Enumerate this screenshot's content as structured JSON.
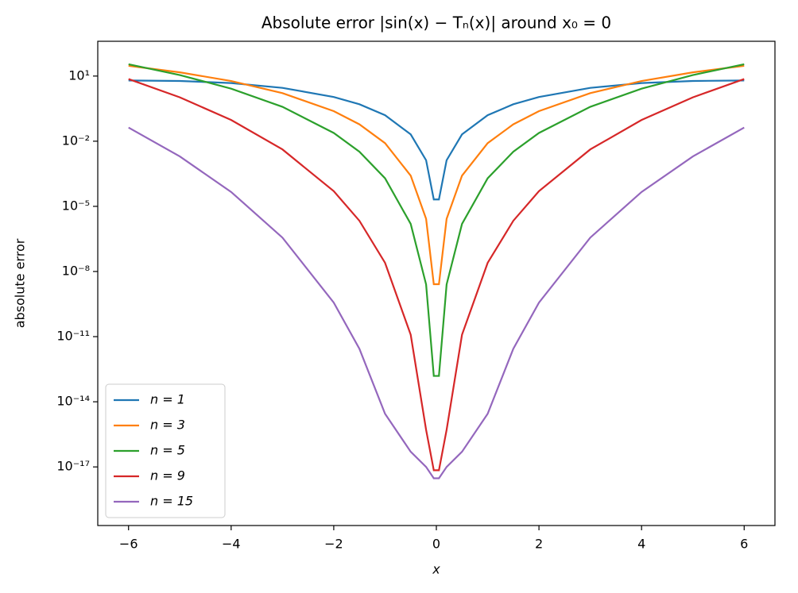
{
  "chart_data": {
    "type": "line",
    "title": "Absolute error |sin(x) − Tₙ(x)| around x₀ = 0",
    "x_label": "x",
    "y_label": "absolute error",
    "log_y": true,
    "grid": false,
    "legend": "lower left",
    "x": [
      -6,
      -5,
      -4,
      -3,
      -2,
      -1.5,
      -1,
      -0.5,
      -0.2,
      -0.05,
      0.05,
      0.2,
      0.5,
      1,
      1.5,
      2,
      3,
      4,
      5,
      6
    ],
    "series": [
      {
        "name": "n = 1",
        "color": "#1f77b4",
        "values": [
          6.279,
          5.959,
          4.757,
          2.859,
          1.0907,
          0.5025,
          0.1585,
          0.0206,
          0.001331,
          2.08e-05,
          2.08e-05,
          0.001331,
          0.0206,
          0.1585,
          0.5025,
          1.0907,
          2.859,
          4.757,
          5.959,
          6.279
        ]
      },
      {
        "name": "n = 3",
        "color": "#ff7f0e",
        "values": [
          29.72,
          14.87,
          5.91,
          1.641,
          0.2426,
          0.06,
          0.00814,
          0.000259,
          2.67e-06,
          2.6e-09,
          2.6e-09,
          2.67e-06,
          0.000259,
          0.00814,
          0.06,
          0.2426,
          1.641,
          5.91,
          14.87,
          29.72
        ]
      },
      {
        "name": "n = 5",
        "color": "#2ca02c",
        "values": [
          35.08,
          11.17,
          2.62,
          0.384,
          0.024,
          0.00328,
          0.000196,
          1.55e-06,
          2.54e-09,
          1.55e-13,
          1.55e-13,
          2.54e-09,
          1.55e-06,
          0.000196,
          0.00328,
          0.024,
          0.384,
          2.62,
          11.17,
          35.08
        ]
      },
      {
        "name": "n = 9",
        "color": "#d62728",
        "values": [
          7.31,
          1.048,
          0.0951,
          0.00419,
          5e-05,
          2.17e-06,
          2.5e-08,
          1.22e-11,
          5.1e-16,
          7e-18,
          7e-18,
          5.1e-16,
          1.22e-11,
          2.5e-08,
          2.17e-06,
          5e-05,
          0.00419,
          0.0951,
          1.048,
          7.31
        ]
      },
      {
        "name": "n = 15",
        "color": "#9467bd",
        "values": [
          0.0426,
          0.00199,
          4.6e-05,
          3.63e-07,
          3.68e-10,
          2.77e-12,
          2.8e-15,
          5e-17,
          1e-17,
          3e-18,
          3e-18,
          1e-17,
          5e-17,
          2.8e-15,
          2.77e-12,
          3.68e-10,
          3.63e-07,
          4.6e-05,
          0.00199,
          0.0426
        ]
      }
    ],
    "xlim": [
      -6.6,
      6.6
    ],
    "xticks": [
      {
        "value": -6,
        "label": "−6"
      },
      {
        "value": -4,
        "label": "−4"
      },
      {
        "value": -2,
        "label": "−2"
      },
      0,
      2,
      4,
      6
    ],
    "ylim": [
      2e-20,
      400
    ],
    "yticks": [
      {
        "value": 10,
        "label": "10¹"
      },
      {
        "value": 0.01,
        "label": "10⁻²"
      },
      {
        "value": 1e-05,
        "label": "10⁻⁵"
      },
      {
        "value": 1e-08,
        "label": "10⁻⁸"
      },
      {
        "value": 1e-11,
        "label": "10⁻¹¹"
      },
      {
        "value": 1e-14,
        "label": "10⁻¹⁴"
      },
      {
        "value": 1e-17,
        "label": "10⁻¹⁷"
      }
    ]
  }
}
